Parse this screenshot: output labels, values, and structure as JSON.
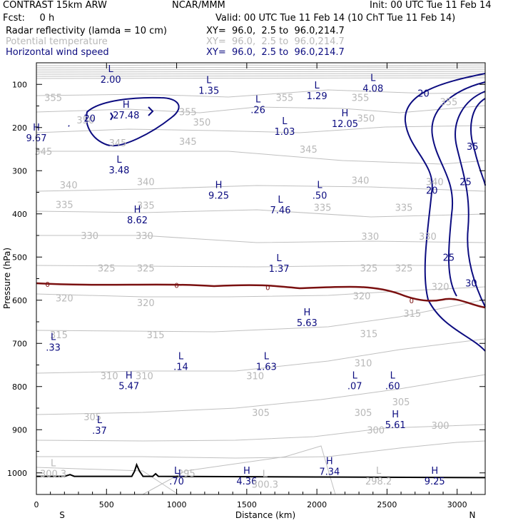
{
  "header": {
    "title_left": "CONTRAST 15km ARW",
    "title_center": "NCAR/MMM",
    "init": "Init: 00 UTC Tue 11 Feb 14",
    "fcst": "Fcst:     0 h",
    "valid": "Valid: 00 UTC Tue 11 Feb 14 (10 ChT Tue 11 Feb 14)",
    "fields": [
      {
        "name": "Radar reflectivity (lamda = 10 cm)",
        "xy": "XY=  96.0,  2.5 to  96.0,214.7",
        "color": "#000000"
      },
      {
        "name": "Potential temperature",
        "xy": "XY=  96.0,  2.5 to  96.0,214.7",
        "color": "#b8b8b8"
      },
      {
        "name": "Horizontal wind speed",
        "xy": "XY=  96.0,  2.5 to  96.0,214.7",
        "color": "#0c0c80"
      }
    ]
  },
  "chart_data": {
    "type": "cross-section contour",
    "xlabel": "Distance (km)",
    "ylabel": "Pressure (hPa)",
    "xlim": [
      0,
      3200
    ],
    "ylim": [
      1050,
      50
    ],
    "x_ticks": [
      "0",
      "500",
      "1000",
      "1500",
      "2000",
      "2500",
      "3000"
    ],
    "y_ticks": [
      "100",
      "200",
      "300",
      "400",
      "500",
      "600",
      "700",
      "800",
      "900",
      "1000"
    ],
    "x_endpoints": {
      "left": "S",
      "right": "N"
    },
    "colors": {
      "theta": "#b8b8b8",
      "wind": "#0c0c80",
      "reflectivity": "#7a1010",
      "terrain": "#000000"
    },
    "theta_contour_labels": [
      {
        "text": "355",
        "x": 120,
        "p": 130
      },
      {
        "text": "355",
        "x": 1080,
        "p": 163
      },
      {
        "text": "355",
        "x": 1770,
        "p": 130
      },
      {
        "text": "355",
        "x": 2310,
        "p": 130
      },
      {
        "text": "355",
        "x": 2940,
        "p": 140
      },
      {
        "text": "350",
        "x": 350,
        "p": 182
      },
      {
        "text": "350",
        "x": 1180,
        "p": 187
      },
      {
        "text": "350",
        "x": 2350,
        "p": 178
      },
      {
        "text": "345",
        "x": 580,
        "p": 235
      },
      {
        "text": "345",
        "x": 1080,
        "p": 232
      },
      {
        "text": "345",
        "x": 1940,
        "p": 250
      },
      {
        "text": "345",
        "x": 50,
        "p": 255
      },
      {
        "text": "340",
        "x": 230,
        "p": 333
      },
      {
        "text": "340",
        "x": 780,
        "p": 325
      },
      {
        "text": "340",
        "x": 2310,
        "p": 322
      },
      {
        "text": "340",
        "x": 2840,
        "p": 325
      },
      {
        "text": "335",
        "x": 200,
        "p": 378
      },
      {
        "text": "335",
        "x": 780,
        "p": 380
      },
      {
        "text": "335",
        "x": 2040,
        "p": 385
      },
      {
        "text": "335",
        "x": 2620,
        "p": 385
      },
      {
        "text": "330",
        "x": 380,
        "p": 450
      },
      {
        "text": "330",
        "x": 770,
        "p": 450
      },
      {
        "text": "330",
        "x": 2380,
        "p": 452
      },
      {
        "text": "330",
        "x": 2790,
        "p": 452
      },
      {
        "text": "325",
        "x": 500,
        "p": 525
      },
      {
        "text": "325",
        "x": 780,
        "p": 525
      },
      {
        "text": "325",
        "x": 2370,
        "p": 525
      },
      {
        "text": "325",
        "x": 2620,
        "p": 525
      },
      {
        "text": "320",
        "x": 200,
        "p": 595
      },
      {
        "text": "320",
        "x": 780,
        "p": 605
      },
      {
        "text": "320",
        "x": 2320,
        "p": 590
      },
      {
        "text": "320",
        "x": 2880,
        "p": 568
      },
      {
        "text": "315",
        "x": 160,
        "p": 680
      },
      {
        "text": "315",
        "x": 850,
        "p": 680
      },
      {
        "text": "315",
        "x": 2370,
        "p": 677
      },
      {
        "text": "315",
        "x": 2680,
        "p": 630
      },
      {
        "text": "310",
        "x": 520,
        "p": 775
      },
      {
        "text": "310",
        "x": 770,
        "p": 775
      },
      {
        "text": "310",
        "x": 1560,
        "p": 775
      },
      {
        "text": "310",
        "x": 2330,
        "p": 745
      },
      {
        "text": "305",
        "x": 400,
        "p": 870
      },
      {
        "text": "305",
        "x": 1600,
        "p": 860
      },
      {
        "text": "305",
        "x": 2330,
        "p": 860
      },
      {
        "text": "305",
        "x": 2600,
        "p": 835
      },
      {
        "text": "300",
        "x": 2420,
        "p": 900
      },
      {
        "text": "300",
        "x": 2880,
        "p": 890
      },
      {
        "text": "295",
        "x": 1070,
        "p": 1000
      }
    ],
    "wind_contour_labels": [
      {
        "text": "20",
        "x": 380,
        "p": 178
      },
      {
        "text": "20",
        "x": 2760,
        "p": 120
      },
      {
        "text": "20",
        "x": 2820,
        "p": 345
      },
      {
        "text": "25",
        "x": 3060,
        "p": 325
      },
      {
        "text": "25",
        "x": 2940,
        "p": 500
      },
      {
        "text": "30",
        "x": 3100,
        "p": 560
      },
      {
        "text": "35",
        "x": 3110,
        "p": 243
      }
    ],
    "reflectivity_contour_labels": [
      {
        "text": "0",
        "x": 80,
        "p": 562
      },
      {
        "text": "0",
        "x": 1000,
        "p": 565
      },
      {
        "text": "0",
        "x": 1650,
        "p": 570
      },
      {
        "text": "0",
        "x": 2675,
        "p": 600
      }
    ],
    "extrema": [
      {
        "type": "L",
        "value": "2.00",
        "x": 530,
        "p": 80
      },
      {
        "type": "L",
        "value": "1.35",
        "x": 1230,
        "p": 105
      },
      {
        "type": "L",
        "value": "1.29",
        "x": 2000,
        "p": 118
      },
      {
        "type": "L",
        "value": "4.08",
        "x": 2400,
        "p": 100
      },
      {
        "type": "H",
        "value": "27.48",
        "x": 640,
        "p": 162
      },
      {
        "type": "L",
        "value": ".26",
        "x": 1580,
        "p": 150
      },
      {
        "type": "H",
        "value": "12.05",
        "x": 2200,
        "p": 182
      },
      {
        "type": "L",
        "value": "1.03",
        "x": 1770,
        "p": 200
      },
      {
        "type": "H",
        "value": "9.67",
        "x": 0,
        "p": 215
      },
      {
        "type": "L",
        "value": "3.48",
        "x": 590,
        "p": 290
      },
      {
        "type": "H",
        "value": "9.25",
        "x": 1300,
        "p": 348
      },
      {
        "type": "L",
        "value": ".50",
        "x": 2020,
        "p": 348
      },
      {
        "type": "L",
        "value": "7.46",
        "x": 1740,
        "p": 382
      },
      {
        "type": "H",
        "value": "8.62",
        "x": 720,
        "p": 405
      },
      {
        "type": "L",
        "value": "1.37",
        "x": 1730,
        "p": 518
      },
      {
        "type": "H",
        "value": "5.63",
        "x": 1930,
        "p": 643
      },
      {
        "type": "L",
        "value": ".33",
        "x": 120,
        "p": 700
      },
      {
        "type": "L",
        "value": ".14",
        "x": 1030,
        "p": 745
      },
      {
        "type": "L",
        "value": "1.63",
        "x": 1640,
        "p": 745
      },
      {
        "type": "H",
        "value": "5.47",
        "x": 660,
        "p": 790
      },
      {
        "type": "L",
        "value": ".07",
        "x": 2270,
        "p": 790
      },
      {
        "type": "L",
        "value": ".60",
        "x": 2540,
        "p": 790
      },
      {
        "type": "L",
        "value": ".37",
        "x": 450,
        "p": 893
      },
      {
        "type": "H",
        "value": "5.61",
        "x": 2560,
        "p": 880
      },
      {
        "type": "L",
        "value": "300.3",
        "x": 120,
        "p": 993
      },
      {
        "type": "H",
        "value": "7.34",
        "x": 2090,
        "p": 988
      },
      {
        "type": "L",
        "value": ".70",
        "x": 1000,
        "p": 1010
      },
      {
        "type": "H",
        "value": "4.36",
        "x": 1500,
        "p": 1010
      },
      {
        "type": "L",
        "value": "298.2",
        "x": 2440,
        "p": 1010
      },
      {
        "type": "H",
        "value": "9.25",
        "x": 2840,
        "p": 1010
      },
      {
        "type": "L",
        "value": "300.3",
        "x": 1630,
        "p": 1018
      },
      {
        "type": "L",
        "value": "",
        "x": 1030,
        "p": 1017
      }
    ],
    "terrain": [
      [
        0,
        1008
      ],
      [
        200,
        1008
      ],
      [
        240,
        1004
      ],
      [
        270,
        1008
      ],
      [
        680,
        1008
      ],
      [
        700,
        996
      ],
      [
        715,
        981
      ],
      [
        735,
        996
      ],
      [
        760,
        1008
      ],
      [
        830,
        1008
      ],
      [
        850,
        1002
      ],
      [
        870,
        1008
      ],
      [
        3200,
        1011
      ]
    ]
  }
}
